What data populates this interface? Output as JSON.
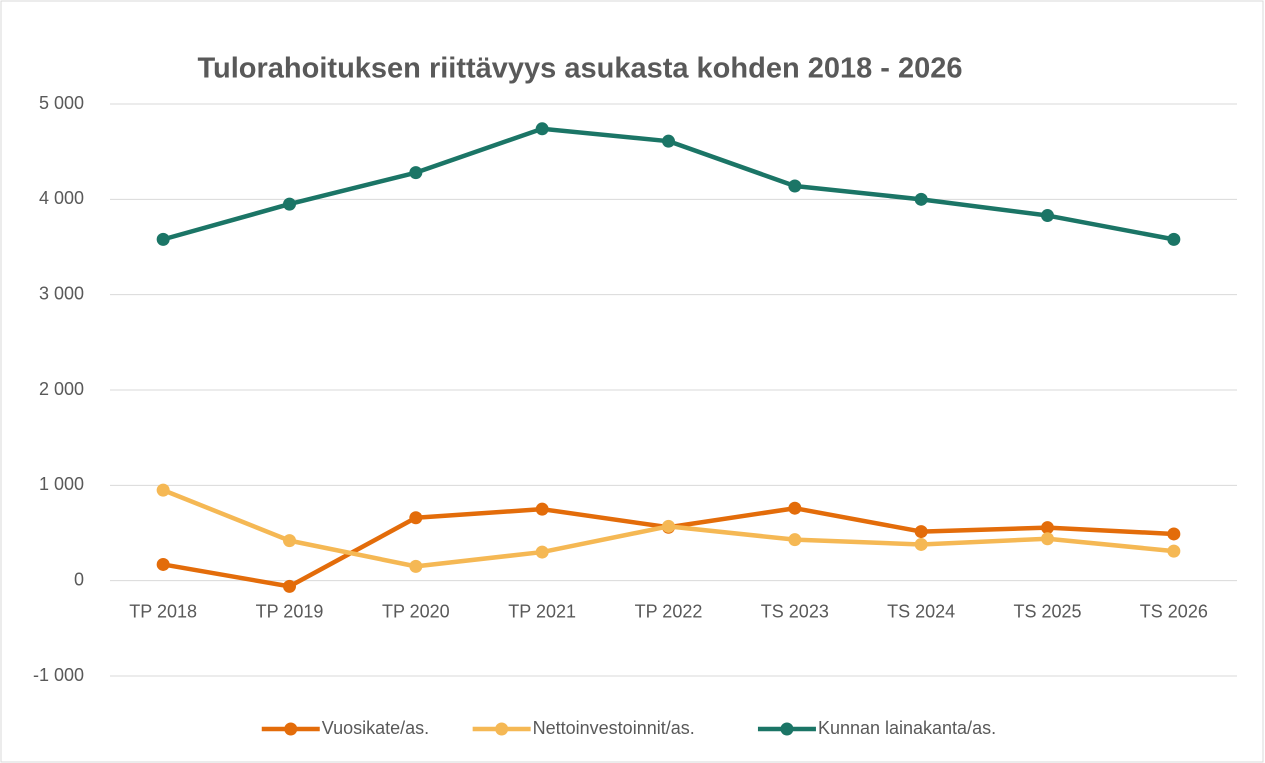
{
  "chart_data": {
    "type": "line",
    "title": "Tulorahoituksen riittävyys asukasta kohden 2018 - 2026",
    "categories": [
      "TP 2018",
      "TP 2019",
      "TP 2020",
      "TP 2021",
      "TP 2022",
      "TS 2023",
      "TS 2024",
      "TS 2025",
      "TS 2026"
    ],
    "series": [
      {
        "name": "Vuosikate/as.",
        "color": "#e36c0a",
        "values": [
          170,
          -60,
          660,
          750,
          560,
          760,
          515,
          556,
          490
        ]
      },
      {
        "name": "Nettoinvestoinnit/as.",
        "color": "#f5b854",
        "values": [
          950,
          420,
          150,
          300,
          570,
          430,
          380,
          440,
          310
        ]
      },
      {
        "name": "Kunnan lainakanta/as.",
        "color": "#1b7566",
        "values": [
          3580,
          3950,
          4280,
          4740,
          4610,
          4140,
          4000,
          3830,
          3580
        ]
      }
    ],
    "ylim": [
      -1000,
      5000
    ],
    "yticks": [
      {
        "value": -1000,
        "label": "-1 000"
      },
      0,
      {
        "value": 1000,
        "label": "1 000"
      },
      {
        "value": 2000,
        "label": "2 000"
      },
      {
        "value": 3000,
        "label": "3 000"
      },
      {
        "value": 4000,
        "label": "4 000"
      },
      {
        "value": 5000,
        "label": "5 000"
      }
    ],
    "grid": true,
    "legend": "bottom"
  }
}
